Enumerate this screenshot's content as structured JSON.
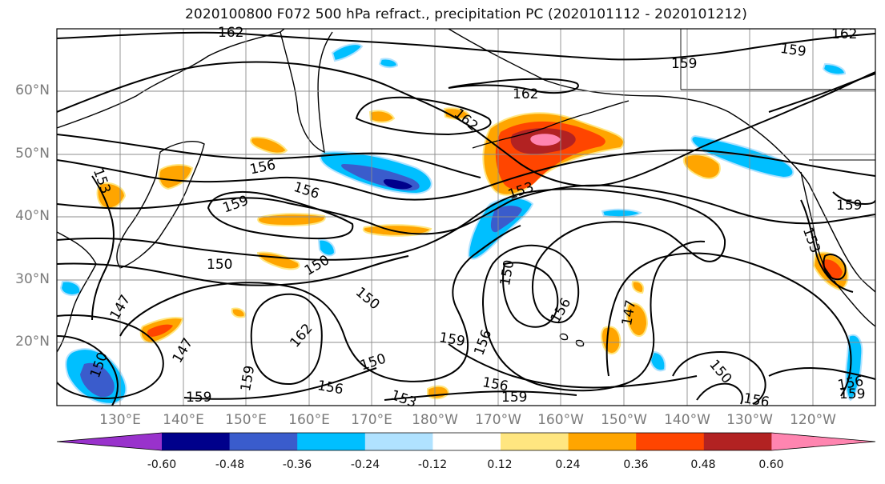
{
  "title": "2020100800 F072 500 hPa refract., precipitation PC (2020101112 - 2020101212)",
  "latitude_labels": [
    "60°N",
    "50°N",
    "40°N",
    "30°N",
    "20°N"
  ],
  "longitude_labels": [
    "130°E",
    "140°E",
    "150°E",
    "160°E",
    "170°E",
    "180°W",
    "170°W",
    "160°W",
    "150°W",
    "140°W",
    "130°W",
    "120°W"
  ],
  "contour_labels": [
    "162",
    "159",
    "162",
    "162",
    "162",
    "159",
    "156",
    "156",
    "159",
    "153",
    "150",
    "150",
    "150",
    "147",
    "147",
    "150",
    "162",
    "159",
    "153",
    "156",
    "159",
    "159",
    "159",
    "156",
    "147",
    "150",
    "156",
    "159",
    "153",
    "156",
    "150",
    "156",
    "159",
    "156",
    "150",
    "153"
  ],
  "colorbar": {
    "ticks": [
      "-0.60",
      "-0.48",
      "-0.36",
      "-0.24",
      "-0.12",
      "0.12",
      "0.24",
      "0.36",
      "0.48",
      "0.60"
    ],
    "colors": [
      "#9932cc",
      "#00008b",
      "#3a5ccc",
      "#00bfff",
      "#b0e2ff",
      "#ffffff",
      "#ffe680",
      "#ffa500",
      "#ff4500",
      "#b22222",
      "#ff85b0"
    ]
  },
  "colors": {
    "contour": "#000000",
    "gridline": "#8c8c8c",
    "coastline": "#000000",
    "label": "#7a7a7a"
  }
}
